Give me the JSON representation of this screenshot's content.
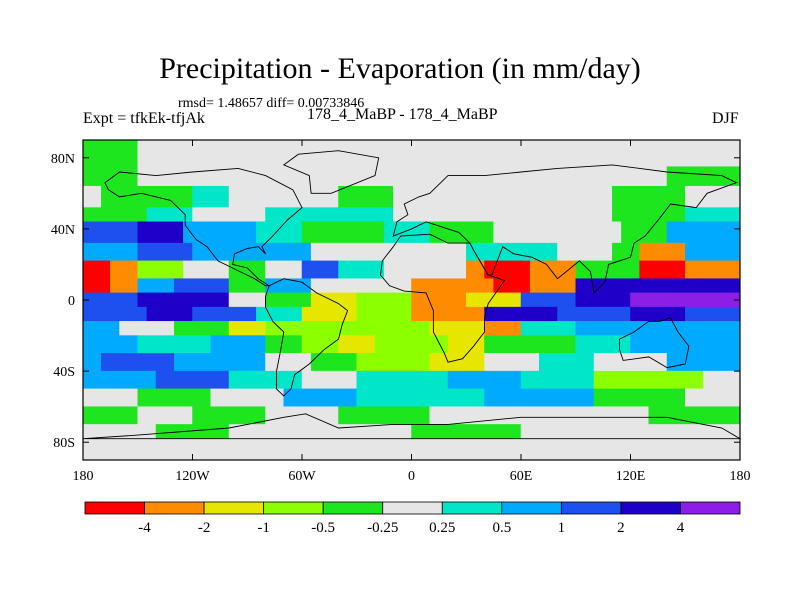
{
  "header": {
    "title": "Precipitation - Evaporation (in mm/day)",
    "stats": "rmsd= 1.48657 diff= 0.00733846",
    "expt": "Expt = tfkEk-tfjAk",
    "runs": "178_4_MaBP - 178_4_MaBP",
    "season": "DJF"
  },
  "chart_data": {
    "type": "heatmap",
    "title": "Precipitation - Evaporation (in mm/day)",
    "xlabel": "",
    "ylabel": "",
    "xlim": [
      -180,
      180
    ],
    "ylim": [
      -90,
      90
    ],
    "x_ticks": [
      {
        "value": -180,
        "label": "180"
      },
      {
        "value": -120,
        "label": "120W"
      },
      {
        "value": -60,
        "label": "60W"
      },
      {
        "value": 0,
        "label": "0"
      },
      {
        "value": 60,
        "label": "60E"
      },
      {
        "value": 120,
        "label": "120E"
      },
      {
        "value": 180,
        "label": "180"
      }
    ],
    "y_ticks": [
      {
        "value": 80,
        "label": "80N"
      },
      {
        "value": 40,
        "label": "40N"
      },
      {
        "value": 0,
        "label": "0"
      },
      {
        "value": -40,
        "label": "40S"
      },
      {
        "value": -80,
        "label": "80S"
      }
    ],
    "colorbar": {
      "levels": [
        -4,
        -2,
        -1,
        -0.5,
        -0.25,
        0.25,
        0.5,
        1,
        2,
        4
      ],
      "labels": [
        "-4",
        "-2",
        "-1",
        "-0.5",
        "-0.25",
        "0.25",
        "0.5",
        "1",
        "2",
        "4"
      ],
      "colors": [
        "#ff0000",
        "#ff8c00",
        "#e6e600",
        "#8cff00",
        "#1ee61e",
        "#e6e6e6",
        "#00e6c8",
        "#00aaff",
        "#1e50f0",
        "#1e00c8",
        "#8c1ee6"
      ]
    },
    "band_category_colors": [
      "#ff0000",
      "#ff8c00",
      "#e6e600",
      "#8cff00",
      "#1ee61e",
      "#e6e6e6",
      "#00e6c8",
      "#00aaff",
      "#1e50f0",
      "#1e00c8",
      "#8c1ee6"
    ],
    "bands": [
      {
        "lat": [
          75,
          90
        ],
        "segments": [
          [
            -180,
            -150,
            4
          ],
          [
            -150,
            -90,
            5
          ],
          [
            -90,
            180,
            5
          ]
        ]
      },
      {
        "lat": [
          64,
          75
        ],
        "segments": [
          [
            -180,
            -150,
            4
          ],
          [
            -150,
            -100,
            5
          ],
          [
            -100,
            -50,
            5
          ],
          [
            -50,
            70,
            5
          ],
          [
            70,
            140,
            5
          ],
          [
            140,
            180,
            4
          ]
        ]
      },
      {
        "lat": [
          52,
          64
        ],
        "segments": [
          [
            -180,
            -170,
            5
          ],
          [
            -170,
            -120,
            4
          ],
          [
            -120,
            -100,
            6
          ],
          [
            -100,
            -40,
            5
          ],
          [
            -40,
            -10,
            4
          ],
          [
            -10,
            60,
            5
          ],
          [
            60,
            110,
            5
          ],
          [
            110,
            150,
            4
          ],
          [
            150,
            180,
            5
          ]
        ]
      },
      {
        "lat": [
          44,
          52
        ],
        "segments": [
          [
            -180,
            -145,
            4
          ],
          [
            -145,
            -120,
            6
          ],
          [
            -120,
            -80,
            5
          ],
          [
            -80,
            -55,
            6
          ],
          [
            -55,
            -10,
            6
          ],
          [
            -10,
            60,
            5
          ],
          [
            60,
            110,
            5
          ],
          [
            110,
            150,
            4
          ],
          [
            150,
            180,
            6
          ]
        ]
      },
      {
        "lat": [
          32,
          44
        ],
        "segments": [
          [
            -180,
            -150,
            8
          ],
          [
            -150,
            -125,
            9
          ],
          [
            -125,
            -85,
            7
          ],
          [
            -85,
            -60,
            6
          ],
          [
            -60,
            -15,
            4
          ],
          [
            -15,
            10,
            6
          ],
          [
            10,
            45,
            4
          ],
          [
            45,
            80,
            5
          ],
          [
            80,
            115,
            5
          ],
          [
            115,
            140,
            4
          ],
          [
            140,
            180,
            7
          ]
        ]
      },
      {
        "lat": [
          22,
          32
        ],
        "segments": [
          [
            -180,
            -150,
            7
          ],
          [
            -150,
            -120,
            8
          ],
          [
            -120,
            -80,
            7
          ],
          [
            -80,
            -55,
            7
          ],
          [
            -55,
            -15,
            5
          ],
          [
            -15,
            30,
            5
          ],
          [
            30,
            80,
            6
          ],
          [
            80,
            110,
            5
          ],
          [
            110,
            125,
            4
          ],
          [
            125,
            150,
            1
          ],
          [
            150,
            180,
            7
          ]
        ]
      },
      {
        "lat": [
          12,
          22
        ],
        "segments": [
          [
            -180,
            -165,
            0
          ],
          [
            -165,
            -150,
            1
          ],
          [
            -150,
            -125,
            3
          ],
          [
            -125,
            -100,
            5
          ],
          [
            -100,
            -80,
            4
          ],
          [
            -80,
            -60,
            5
          ],
          [
            -60,
            -40,
            8
          ],
          [
            -40,
            -15,
            6
          ],
          [
            -15,
            30,
            5
          ],
          [
            30,
            40,
            1
          ],
          [
            40,
            65,
            0
          ],
          [
            65,
            90,
            1
          ],
          [
            90,
            125,
            4
          ],
          [
            125,
            150,
            0
          ],
          [
            150,
            180,
            1
          ]
        ]
      },
      {
        "lat": [
          4,
          12
        ],
        "segments": [
          [
            -180,
            -165,
            0
          ],
          [
            -165,
            -150,
            1
          ],
          [
            -150,
            -130,
            7
          ],
          [
            -130,
            -100,
            8
          ],
          [
            -100,
            -80,
            4
          ],
          [
            -80,
            -55,
            7
          ],
          [
            -55,
            -30,
            5
          ],
          [
            -30,
            0,
            5
          ],
          [
            0,
            45,
            1
          ],
          [
            45,
            65,
            0
          ],
          [
            65,
            90,
            1
          ],
          [
            90,
            125,
            9
          ],
          [
            125,
            160,
            9
          ],
          [
            160,
            180,
            9
          ]
        ]
      },
      {
        "lat": [
          -4,
          4
        ],
        "segments": [
          [
            -180,
            -150,
            8
          ],
          [
            -150,
            -100,
            9
          ],
          [
            -100,
            -80,
            5
          ],
          [
            -80,
            -55,
            4
          ],
          [
            -55,
            -30,
            2
          ],
          [
            -30,
            0,
            3
          ],
          [
            0,
            30,
            1
          ],
          [
            30,
            60,
            2
          ],
          [
            60,
            90,
            8
          ],
          [
            90,
            120,
            9
          ],
          [
            120,
            180,
            10
          ]
        ]
      },
      {
        "lat": [
          -12,
          -4
        ],
        "segments": [
          [
            -180,
            -145,
            8
          ],
          [
            -145,
            -120,
            9
          ],
          [
            -120,
            -85,
            8
          ],
          [
            -85,
            -60,
            6
          ],
          [
            -60,
            -30,
            2
          ],
          [
            -30,
            0,
            3
          ],
          [
            0,
            40,
            1
          ],
          [
            40,
            80,
            9
          ],
          [
            80,
            120,
            8
          ],
          [
            120,
            150,
            9
          ],
          [
            150,
            180,
            8
          ]
        ]
      },
      {
        "lat": [
          -20,
          -12
        ],
        "segments": [
          [
            -180,
            -160,
            7
          ],
          [
            -160,
            -130,
            5
          ],
          [
            -130,
            -100,
            4
          ],
          [
            -100,
            -80,
            2
          ],
          [
            -80,
            -40,
            3
          ],
          [
            -40,
            -25,
            3
          ],
          [
            -25,
            10,
            3
          ],
          [
            10,
            40,
            2
          ],
          [
            40,
            60,
            1
          ],
          [
            60,
            90,
            6
          ],
          [
            90,
            120,
            7
          ],
          [
            120,
            180,
            7
          ]
        ]
      },
      {
        "lat": [
          -30,
          -20
        ],
        "segments": [
          [
            -180,
            -150,
            7
          ],
          [
            -150,
            -110,
            6
          ],
          [
            -110,
            -80,
            7
          ],
          [
            -80,
            -60,
            4
          ],
          [
            -60,
            -40,
            3
          ],
          [
            -40,
            -20,
            2
          ],
          [
            -20,
            20,
            3
          ],
          [
            20,
            40,
            2
          ],
          [
            40,
            60,
            4
          ],
          [
            60,
            90,
            4
          ],
          [
            90,
            120,
            6
          ],
          [
            120,
            180,
            7
          ]
        ]
      },
      {
        "lat": [
          -40,
          -30
        ],
        "segments": [
          [
            -180,
            -170,
            7
          ],
          [
            -170,
            -130,
            8
          ],
          [
            -130,
            -80,
            7
          ],
          [
            -80,
            -55,
            5
          ],
          [
            -55,
            -30,
            4
          ],
          [
            -30,
            10,
            3
          ],
          [
            10,
            40,
            2
          ],
          [
            40,
            70,
            5
          ],
          [
            70,
            100,
            6
          ],
          [
            100,
            140,
            5
          ],
          [
            140,
            180,
            7
          ]
        ]
      },
      {
        "lat": [
          -50,
          -40
        ],
        "segments": [
          [
            -180,
            -140,
            7
          ],
          [
            -140,
            -100,
            8
          ],
          [
            -100,
            -60,
            6
          ],
          [
            -60,
            -30,
            5
          ],
          [
            -30,
            20,
            6
          ],
          [
            20,
            60,
            7
          ],
          [
            60,
            100,
            6
          ],
          [
            100,
            160,
            3
          ],
          [
            160,
            180,
            5
          ]
        ]
      },
      {
        "lat": [
          -60,
          -50
        ],
        "segments": [
          [
            -180,
            -150,
            5
          ],
          [
            -150,
            -110,
            4
          ],
          [
            -110,
            -70,
            5
          ],
          [
            -70,
            -30,
            7
          ],
          [
            -30,
            40,
            6
          ],
          [
            40,
            100,
            7
          ],
          [
            100,
            150,
            4
          ],
          [
            150,
            180,
            5
          ]
        ]
      },
      {
        "lat": [
          -70,
          -60
        ],
        "segments": [
          [
            -180,
            -150,
            4
          ],
          [
            -150,
            -120,
            5
          ],
          [
            -120,
            -80,
            4
          ],
          [
            -80,
            -40,
            5
          ],
          [
            -40,
            10,
            4
          ],
          [
            10,
            70,
            5
          ],
          [
            70,
            130,
            5
          ],
          [
            130,
            180,
            4
          ]
        ]
      },
      {
        "lat": [
          -78,
          -70
        ],
        "segments": [
          [
            -180,
            -140,
            5
          ],
          [
            -140,
            -100,
            4
          ],
          [
            -100,
            -60,
            5
          ],
          [
            -60,
            0,
            5
          ],
          [
            0,
            60,
            4
          ],
          [
            60,
            120,
            5
          ],
          [
            120,
            180,
            5
          ]
        ]
      },
      {
        "lat": [
          -90,
          -78
        ],
        "segments": [
          [
            -180,
            180,
            5
          ]
        ]
      }
    ]
  }
}
